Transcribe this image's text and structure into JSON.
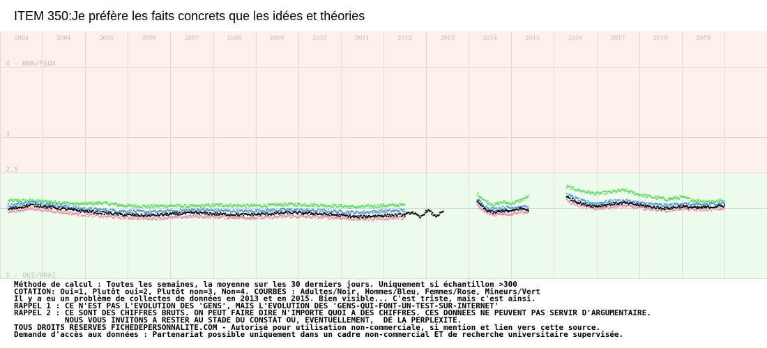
{
  "title": "ITEM 350:Je préfère les faits concrets que les idées et théories",
  "chart_data": {
    "type": "scatter",
    "title": "ITEM 350:Je préfère les faits concrets que les idées et théories",
    "xlabel": "",
    "ylabel": "",
    "xlim": [
      2002.5,
      2020.5
    ],
    "ylim": [
      1,
      4.5
    ],
    "x_tick_labels": [
      "2003",
      "2004",
      "2005",
      "2006",
      "2007",
      "2008",
      "2009",
      "2010",
      "2011",
      "2012",
      "2013",
      "2014",
      "2015",
      "2016",
      "2017",
      "2018",
      "2019"
    ],
    "y_ticks": [
      {
        "value": 4,
        "label": "4 - NON/FAUX"
      },
      {
        "value": 3,
        "label": "3"
      },
      {
        "value": 2.5,
        "label": "2.5"
      },
      {
        "value": 2,
        "label": "2"
      },
      {
        "value": 1,
        "label": "1 - OUI/VRAI"
      }
    ],
    "background_bands": [
      {
        "from": 2.5,
        "to": 4.5,
        "color": "#fdf0ea"
      },
      {
        "from": 1.0,
        "to": 2.5,
        "color": "#ecfbec"
      }
    ],
    "grid": true,
    "series": [
      {
        "name": "Adultes",
        "color": "#000000",
        "segments": [
          {
            "start": 2002.7,
            "end": 2012.0,
            "values": [
              1.98,
              2.04,
              2.0,
              1.96,
              1.93,
              1.9,
              1.89,
              1.91,
              1.93,
              1.91,
              1.9,
              1.91,
              1.93,
              1.92,
              1.9,
              1.87,
              1.89,
              1.9
            ]
          },
          {
            "start": 2012.0,
            "end": 2012.9,
            "values": [
              1.9,
              1.94,
              1.86,
              1.97,
              1.88,
              1.94
            ]
          },
          {
            "start": 2013.7,
            "end": 2014.9,
            "values": [
              2.09,
              1.97,
              1.93,
              1.96,
              1.95,
              1.99,
              1.97
            ]
          },
          {
            "start": 2015.8,
            "end": 2019.5,
            "values": [
              2.15,
              2.06,
              2.02,
              2.05,
              2.07,
              2.04,
              2.01,
              1.99,
              2.02,
              2.0,
              2.01,
              2.03
            ]
          }
        ]
      },
      {
        "name": "Hommes",
        "color": "#4a90e2",
        "segments": [
          {
            "start": 2002.7,
            "end": 2012.0,
            "values": [
              2.03,
              2.08,
              2.04,
              1.99,
              1.97,
              1.95,
              1.94,
              1.95,
              1.97,
              1.96,
              1.95,
              1.96,
              1.97,
              1.96,
              1.95,
              1.93,
              1.95,
              1.96
            ]
          },
          {
            "start": 2013.7,
            "end": 2014.9,
            "values": [
              2.12,
              2.01,
              1.98,
              2.0,
              2.0,
              2.02,
              2.0
            ]
          },
          {
            "start": 2015.8,
            "end": 2019.5,
            "values": [
              2.19,
              2.1,
              2.06,
              2.09,
              2.1,
              2.07,
              2.05,
              2.03,
              2.06,
              2.04,
              2.05,
              2.07
            ]
          }
        ]
      },
      {
        "name": "Femmes",
        "color": "#ee88aa",
        "segments": [
          {
            "start": 2002.7,
            "end": 2012.0,
            "values": [
              1.94,
              1.99,
              1.95,
              1.91,
              1.88,
              1.86,
              1.85,
              1.86,
              1.88,
              1.87,
              1.86,
              1.86,
              1.88,
              1.87,
              1.86,
              1.84,
              1.85,
              1.86
            ]
          },
          {
            "start": 2013.7,
            "end": 2014.9,
            "values": [
              2.03,
              1.93,
              1.9,
              1.92,
              1.91,
              1.95,
              1.93
            ]
          },
          {
            "start": 2015.8,
            "end": 2019.5,
            "values": [
              2.1,
              2.02,
              1.99,
              2.01,
              2.03,
              2.0,
              1.98,
              1.96,
              1.99,
              1.97,
              1.98,
              1.99
            ]
          }
        ]
      },
      {
        "name": "Mineurs",
        "color": "#55dd55",
        "segments": [
          {
            "start": 2002.7,
            "end": 2012.0,
            "values": [
              2.1,
              2.1,
              2.08,
              2.05,
              2.07,
              2.03,
              2.02,
              2.03,
              2.02,
              2.04,
              2.03,
              2.03,
              2.05,
              2.04,
              2.03,
              2.01,
              2.03,
              2.04
            ]
          },
          {
            "start": 2013.7,
            "end": 2014.9,
            "values": [
              2.2,
              2.09,
              2.04,
              2.08,
              2.06,
              2.1,
              2.16
            ]
          },
          {
            "start": 2015.8,
            "end": 2019.5,
            "values": [
              2.3,
              2.24,
              2.2,
              2.22,
              2.25,
              2.19,
              2.15,
              2.12,
              2.15,
              2.1,
              2.09,
              2.1
            ]
          }
        ]
      }
    ]
  },
  "notes": [
    "Méthode de calcul : Toutes les semaines, la moyenne sur les 30 derniers jours. Uniquement si échantillon >300",
    "COTATION: Oui=1, Plutôt oui=2, Plutôt non=3, Non=4. COURBES : Adultes/Noir, Hommes/Bleu, Femmes/Rose, Mineurs/Vert",
    "Il y a eu un problème de collectes de données en 2013 et en 2015. Bien visible... C'est triste, mais c'est ainsi.",
    "RAPPEL 1 : CE N'EST PAS L'EVOLUTION DES 'GENS', MAIS L'EVOLUTION DES 'GENS-QUI-FONT-UN-TEST-SUR-INTERNET'",
    "RAPPEL 2 : CE SONT DES CHIFFRES BRUTS. ON PEUT FAIRE DIRE N'IMPORTE QUOI A DES CHIFFRES. CES DONNEES NE PEUVENT PAS SERVIR D'ARGUMENTAIRE.",
    "           NOUS VOUS INVITONS A RESTER AU STADE DU CONSTAT OU, EVENTUELLEMENT,  DE LA PERPLEXITE.",
    "TOUS DROITS RESERVES FICHEDEPERSONNALITE.COM - Autorisé pour utilisation non-commerciale, si mention et lien vers cette source.",
    "Demande d'accès aux données : Partenariat possible uniquement dans un cadre non-commercial ET de recherche universitaire supervisée."
  ]
}
